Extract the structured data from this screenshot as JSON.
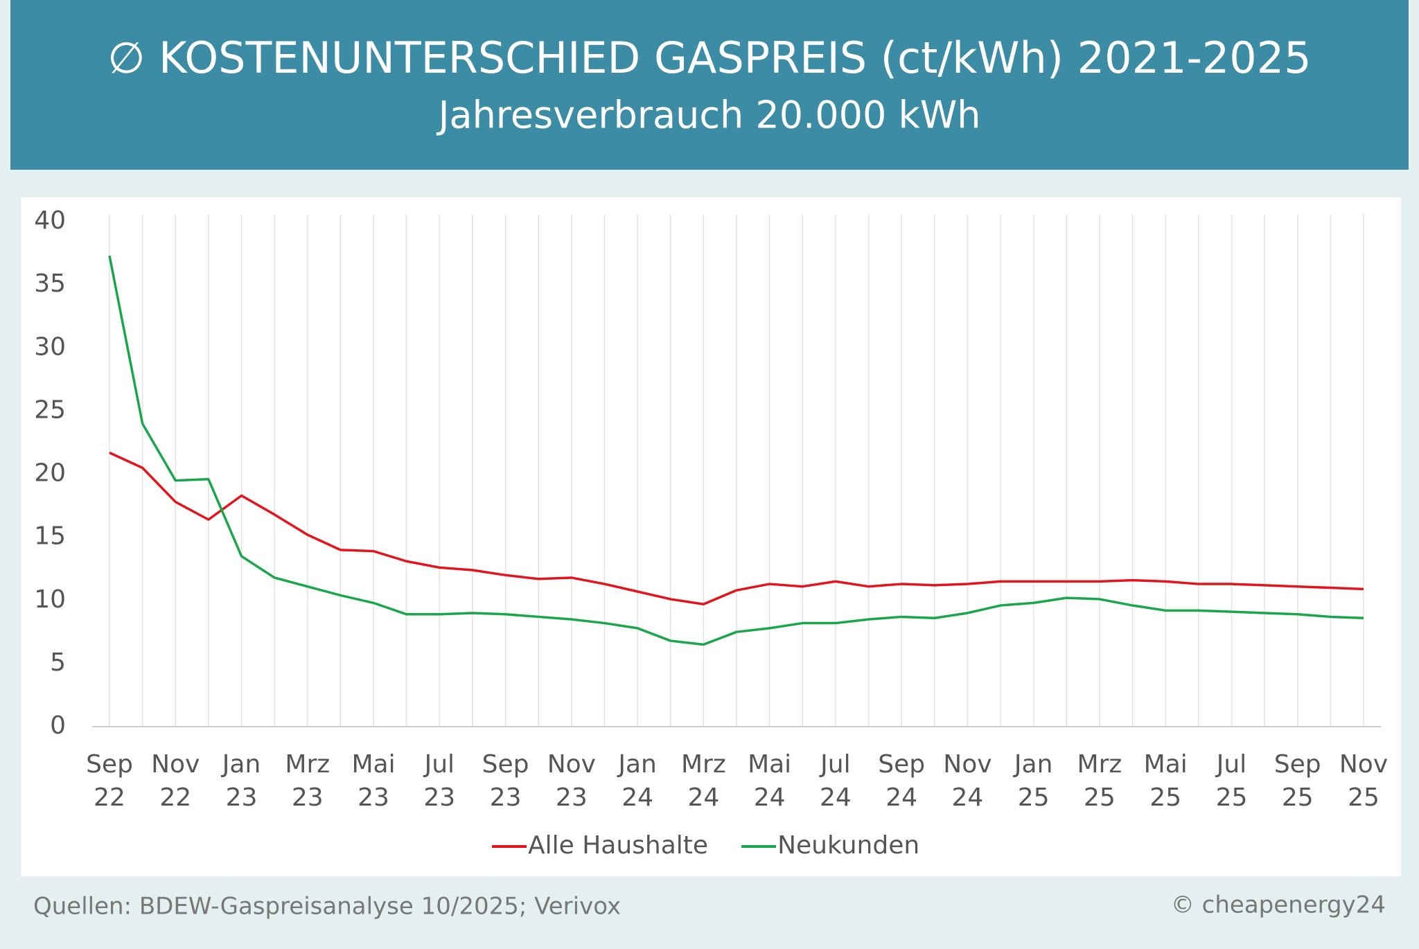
{
  "chart_data": {
    "type": "line",
    "title": "∅ KOSTENUNTERSCHIED GASPREIS (ct/kWh) 2021-2025",
    "subtitle": "Jahresverbrauch 20.000 kWh",
    "categories": [
      "Sep 22",
      null,
      "Nov 22",
      null,
      "Jan 23",
      null,
      "Mrz 23",
      null,
      "Mai 23",
      null,
      "Jul 23",
      null,
      "Sep 23",
      null,
      "Nov 23",
      null,
      "Jan 24",
      null,
      "Mrz 24",
      null,
      "Mai 24",
      null,
      "Jul 24",
      null,
      "Sep 24",
      null,
      "Nov 24",
      null,
      "Jan 25",
      null,
      "Mrz 25",
      null,
      "Mai 25",
      null,
      "Jul 25",
      null,
      "Sep 25",
      null,
      "Nov 25"
    ],
    "series": [
      {
        "name": "Alle Haushalte",
        "color": "#e3141b",
        "values": [
          21.7,
          20.5,
          17.8,
          16.4,
          18.3,
          16.8,
          15.2,
          14.0,
          13.9,
          13.1,
          12.6,
          12.4,
          12.0,
          11.7,
          11.8,
          11.3,
          10.7,
          10.1,
          9.7,
          10.8,
          11.3,
          11.1,
          11.5,
          11.1,
          11.3,
          11.2,
          11.3,
          11.5,
          11.5,
          11.5,
          11.5,
          11.6,
          11.5,
          11.3,
          11.3,
          11.2,
          11.1,
          11.0,
          10.9
        ]
      },
      {
        "name": "Neukunden",
        "color": "#1aa64b",
        "values": [
          37.3,
          24.0,
          19.5,
          19.6,
          13.5,
          11.8,
          11.1,
          10.4,
          9.8,
          8.9,
          8.9,
          9.0,
          8.9,
          8.7,
          8.5,
          8.2,
          7.8,
          6.8,
          6.5,
          7.5,
          7.8,
          8.2,
          8.2,
          8.5,
          8.7,
          8.6,
          9.0,
          9.6,
          9.8,
          10.2,
          10.1,
          9.6,
          9.2,
          9.2,
          9.1,
          9.0,
          8.9,
          8.7,
          8.6
        ]
      }
    ],
    "ylim": [
      0,
      40
    ],
    "yticks": [
      0,
      5,
      10,
      15,
      20,
      25,
      30,
      35,
      40
    ],
    "grid": true,
    "legend": "bottom",
    "source": "Quellen: BDEW-Gaspreisanalyse 10/2025; Verivox",
    "credit": "© cheapenergy24"
  }
}
